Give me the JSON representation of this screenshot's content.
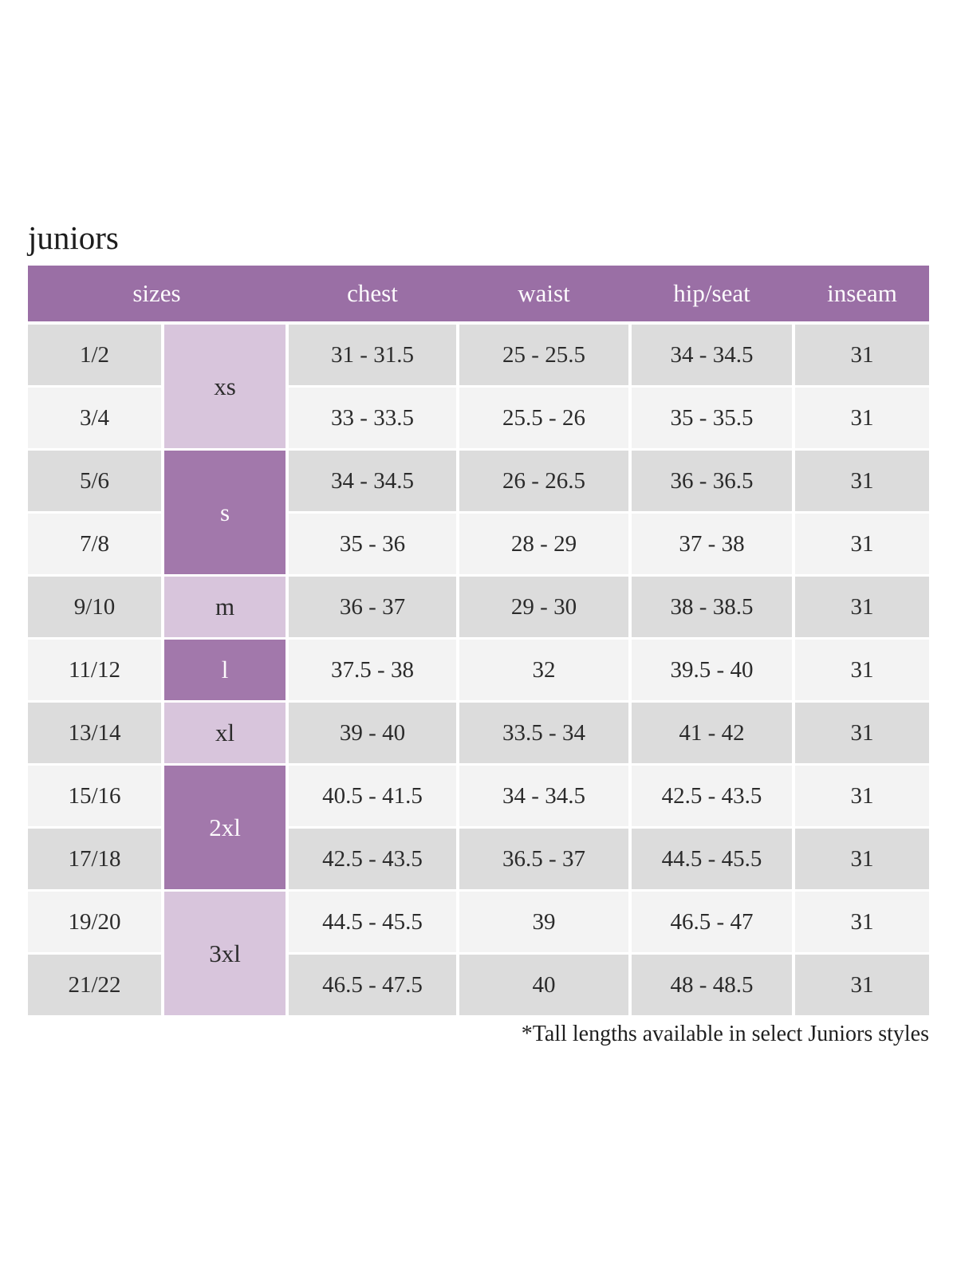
{
  "title": "juniors",
  "colors": {
    "header_purple": "#9a6fa5",
    "letter_dark_purple": "#a278ab",
    "letter_lavender": "#d8c5dc",
    "row_gray": "#dcdcdc",
    "row_light": "#f3f3f3",
    "header_text": "#fdfbfd",
    "body_text": "#2b2b2b"
  },
  "table": {
    "headers": {
      "sizes": "sizes",
      "chest": "chest",
      "waist": "waist",
      "hip_seat": "hip/seat",
      "inseam": "inseam"
    },
    "letters": [
      {
        "label": "xs",
        "rows": 2,
        "variant": "lavender"
      },
      {
        "label": "s",
        "rows": 2,
        "variant": "purple"
      },
      {
        "label": "m",
        "rows": 1,
        "variant": "lavender"
      },
      {
        "label": "l",
        "rows": 1,
        "variant": "purple"
      },
      {
        "label": "xl",
        "rows": 1,
        "variant": "lavender"
      },
      {
        "label": "2xl",
        "rows": 2,
        "variant": "purple"
      },
      {
        "label": "3xl",
        "rows": 2,
        "variant": "lavender"
      }
    ],
    "rows": [
      {
        "size": "1/2",
        "chest": "31 - 31.5",
        "waist": "25 - 25.5",
        "hip": "34 - 34.5",
        "inseam": "31"
      },
      {
        "size": "3/4",
        "chest": "33 - 33.5",
        "waist": "25.5 - 26",
        "hip": "35 - 35.5",
        "inseam": "31"
      },
      {
        "size": "5/6",
        "chest": "34 - 34.5",
        "waist": "26 - 26.5",
        "hip": "36 - 36.5",
        "inseam": "31"
      },
      {
        "size": "7/8",
        "chest": "35 - 36",
        "waist": "28 - 29",
        "hip": "37 - 38",
        "inseam": "31"
      },
      {
        "size": "9/10",
        "chest": "36 - 37",
        "waist": "29 - 30",
        "hip": "38 - 38.5",
        "inseam": "31"
      },
      {
        "size": "11/12",
        "chest": "37.5 - 38",
        "waist": "32",
        "hip": "39.5 - 40",
        "inseam": "31"
      },
      {
        "size": "13/14",
        "chest": "39 - 40",
        "waist": "33.5 - 34",
        "hip": "41 - 42",
        "inseam": "31"
      },
      {
        "size": "15/16",
        "chest": "40.5 - 41.5",
        "waist": "34 - 34.5",
        "hip": "42.5 - 43.5",
        "inseam": "31"
      },
      {
        "size": "17/18",
        "chest": "42.5 - 43.5",
        "waist": "36.5 - 37",
        "hip": "44.5 - 45.5",
        "inseam": "31"
      },
      {
        "size": "19/20",
        "chest": "44.5 - 45.5",
        "waist": "39",
        "hip": "46.5 - 47",
        "inseam": "31"
      },
      {
        "size": "21/22",
        "chest": "46.5 - 47.5",
        "waist": "40",
        "hip": "48 - 48.5",
        "inseam": "31"
      }
    ]
  },
  "footnote": "*Tall lengths available in select Juniors styles"
}
